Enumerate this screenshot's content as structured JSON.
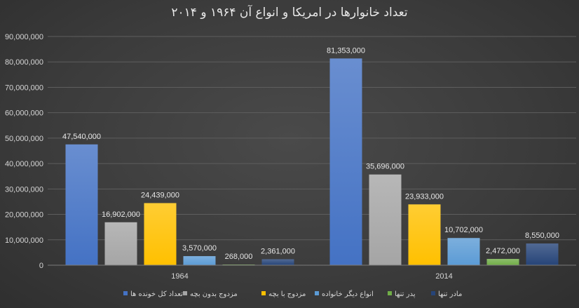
{
  "chart_data": {
    "type": "bar",
    "title": "تعداد خانوارها در امریکا و انواع آن ۱۹۶۴ و ۲۰۱۴",
    "categories": [
      "1964",
      "2014"
    ],
    "ylim": [
      0,
      90000000
    ],
    "yticks": [
      0,
      10000000,
      20000000,
      30000000,
      40000000,
      50000000,
      60000000,
      70000000,
      80000000,
      90000000
    ],
    "ytick_labels": [
      "0",
      "10,000,000",
      "20,000,000",
      "30,000,000",
      "40,000,000",
      "50,000,000",
      "60,000,000",
      "70,000,000",
      "80,000,000",
      "90,000,000"
    ],
    "grid": true,
    "legend_position": "bottom",
    "series": [
      {
        "name": "تعداد کل خونده ها",
        "values": [
          47540000,
          81353000
        ],
        "labels": [
          "47,540,000",
          "81,353,000"
        ],
        "color": "#4472c4"
      },
      {
        "name": "مزدوج بدون بچه",
        "values": [
          16902000,
          35696000
        ],
        "labels": [
          "16,902,000",
          "35,696,000"
        ],
        "color": "#a5a5a5"
      },
      {
        "name": "مزدوج با بچه",
        "values": [
          24439000,
          23933000
        ],
        "labels": [
          "24,439,000",
          "23,933,000"
        ],
        "color": "#ffc000"
      },
      {
        "name": "انواع دیگر خانواده",
        "values": [
          3570000,
          10702000
        ],
        "labels": [
          "3,570,000",
          "10,702,000"
        ],
        "color": "#5b9bd5"
      },
      {
        "name": "پدر تنها",
        "values": [
          268000,
          2472000
        ],
        "labels": [
          "268,000",
          "2,472,000"
        ],
        "color": "#70ad47"
      },
      {
        "name": "مادر تنها",
        "values": [
          2361000,
          8550000
        ],
        "labels": [
          "2,361,000",
          "8,550,000"
        ],
        "color": "#264478"
      }
    ]
  }
}
